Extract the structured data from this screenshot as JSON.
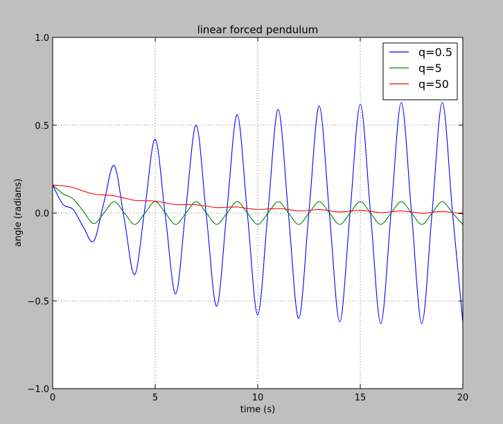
{
  "chart_data": {
    "type": "line",
    "title": "linear forced pendulum",
    "xlabel": "time (s)",
    "ylabel": "angle (radians)",
    "xlim": [
      0,
      20
    ],
    "ylim": [
      -1.0,
      1.0
    ],
    "xticks": [
      0,
      5,
      10,
      15,
      20
    ],
    "xtick_labels": [
      "0",
      "5",
      "10",
      "15",
      "20"
    ],
    "yticks": [
      -1.0,
      -0.5,
      0.0,
      0.5,
      1.0
    ],
    "ytick_labels": [
      "−1.0",
      "−0.5",
      "0.0",
      "0.5",
      "1.0"
    ],
    "grid": true,
    "legend_position": "top-right",
    "series": [
      {
        "name": "q=0.5",
        "color": "#0000ff",
        "x": [
          0,
          0.5,
          1.0,
          1.5,
          2.0,
          2.5,
          3.0,
          3.5,
          4.0,
          4.5,
          5.0,
          5.5,
          6.0,
          6.5,
          7.0,
          7.5,
          8.0,
          8.5,
          9.0,
          9.5,
          10.0,
          10.5,
          11.0,
          11.5,
          12.0,
          12.5,
          13.0,
          13.5,
          14.0,
          14.5,
          15.0,
          15.5,
          16.0,
          16.5,
          17.0,
          17.5,
          18.0,
          18.5,
          19.0,
          19.5,
          20.0
        ],
        "y": [
          0.16,
          0.05,
          0.02,
          -0.08,
          -0.16,
          0.06,
          0.27,
          -0.04,
          -0.35,
          0.03,
          0.42,
          -0.02,
          -0.46,
          0.03,
          0.5,
          -0.02,
          -0.53,
          0.02,
          0.56,
          -0.01,
          -0.58,
          0.01,
          0.59,
          -0.01,
          -0.6,
          0.01,
          0.61,
          -0.01,
          -0.62,
          0.0,
          0.62,
          0.0,
          -0.63,
          0.0,
          0.63,
          0.0,
          -0.63,
          0.0,
          0.63,
          0.0,
          -0.62
        ]
      },
      {
        "name": "q=5",
        "color": "#008000",
        "x": [
          0,
          0.5,
          1.0,
          1.5,
          2.0,
          2.5,
          3.0,
          3.5,
          4.0,
          4.5,
          5.0,
          5.5,
          6.0,
          6.5,
          7.0,
          7.5,
          8.0,
          8.5,
          9.0,
          9.5,
          10.0,
          10.5,
          11.0,
          11.5,
          12.0,
          12.5,
          13.0,
          13.5,
          14.0,
          14.5,
          15.0,
          15.5,
          16.0,
          16.5,
          17.0,
          17.5,
          18.0,
          18.5,
          19.0,
          19.5,
          20.0
        ],
        "y": [
          0.16,
          0.11,
          0.08,
          0.01,
          -0.06,
          0.0,
          0.065,
          0.0,
          -0.065,
          0.0,
          0.065,
          0.0,
          -0.065,
          0.0,
          0.065,
          0.0,
          -0.065,
          0.0,
          0.065,
          0.0,
          -0.065,
          0.0,
          0.065,
          0.0,
          -0.065,
          0.0,
          0.065,
          0.0,
          -0.065,
          0.0,
          0.065,
          0.0,
          -0.065,
          0.0,
          0.065,
          0.0,
          -0.065,
          0.0,
          0.065,
          0.0,
          -0.065
        ]
      },
      {
        "name": "q=50",
        "color": "#ff0000",
        "x": [
          0,
          0.5,
          1.0,
          1.5,
          2.0,
          2.5,
          3.0,
          3.5,
          4.0,
          4.5,
          5.0,
          5.5,
          6.0,
          6.5,
          7.0,
          7.5,
          8.0,
          8.5,
          9.0,
          9.5,
          10.0,
          10.5,
          11.0,
          11.5,
          12.0,
          12.5,
          13.0,
          13.5,
          14.0,
          14.5,
          15.0,
          15.5,
          16.0,
          16.5,
          17.0,
          17.5,
          18.0,
          18.5,
          19.0,
          19.5,
          20.0
        ],
        "y": [
          0.16,
          0.155,
          0.145,
          0.125,
          0.108,
          0.103,
          0.098,
          0.085,
          0.072,
          0.07,
          0.068,
          0.058,
          0.048,
          0.048,
          0.047,
          0.039,
          0.031,
          0.033,
          0.034,
          0.026,
          0.02,
          0.023,
          0.026,
          0.02,
          0.012,
          0.015,
          0.02,
          0.013,
          0.006,
          0.011,
          0.015,
          0.009,
          0.002,
          0.007,
          0.012,
          0.006,
          -0.001,
          0.004,
          0.009,
          0.003,
          -0.005
        ]
      }
    ]
  }
}
